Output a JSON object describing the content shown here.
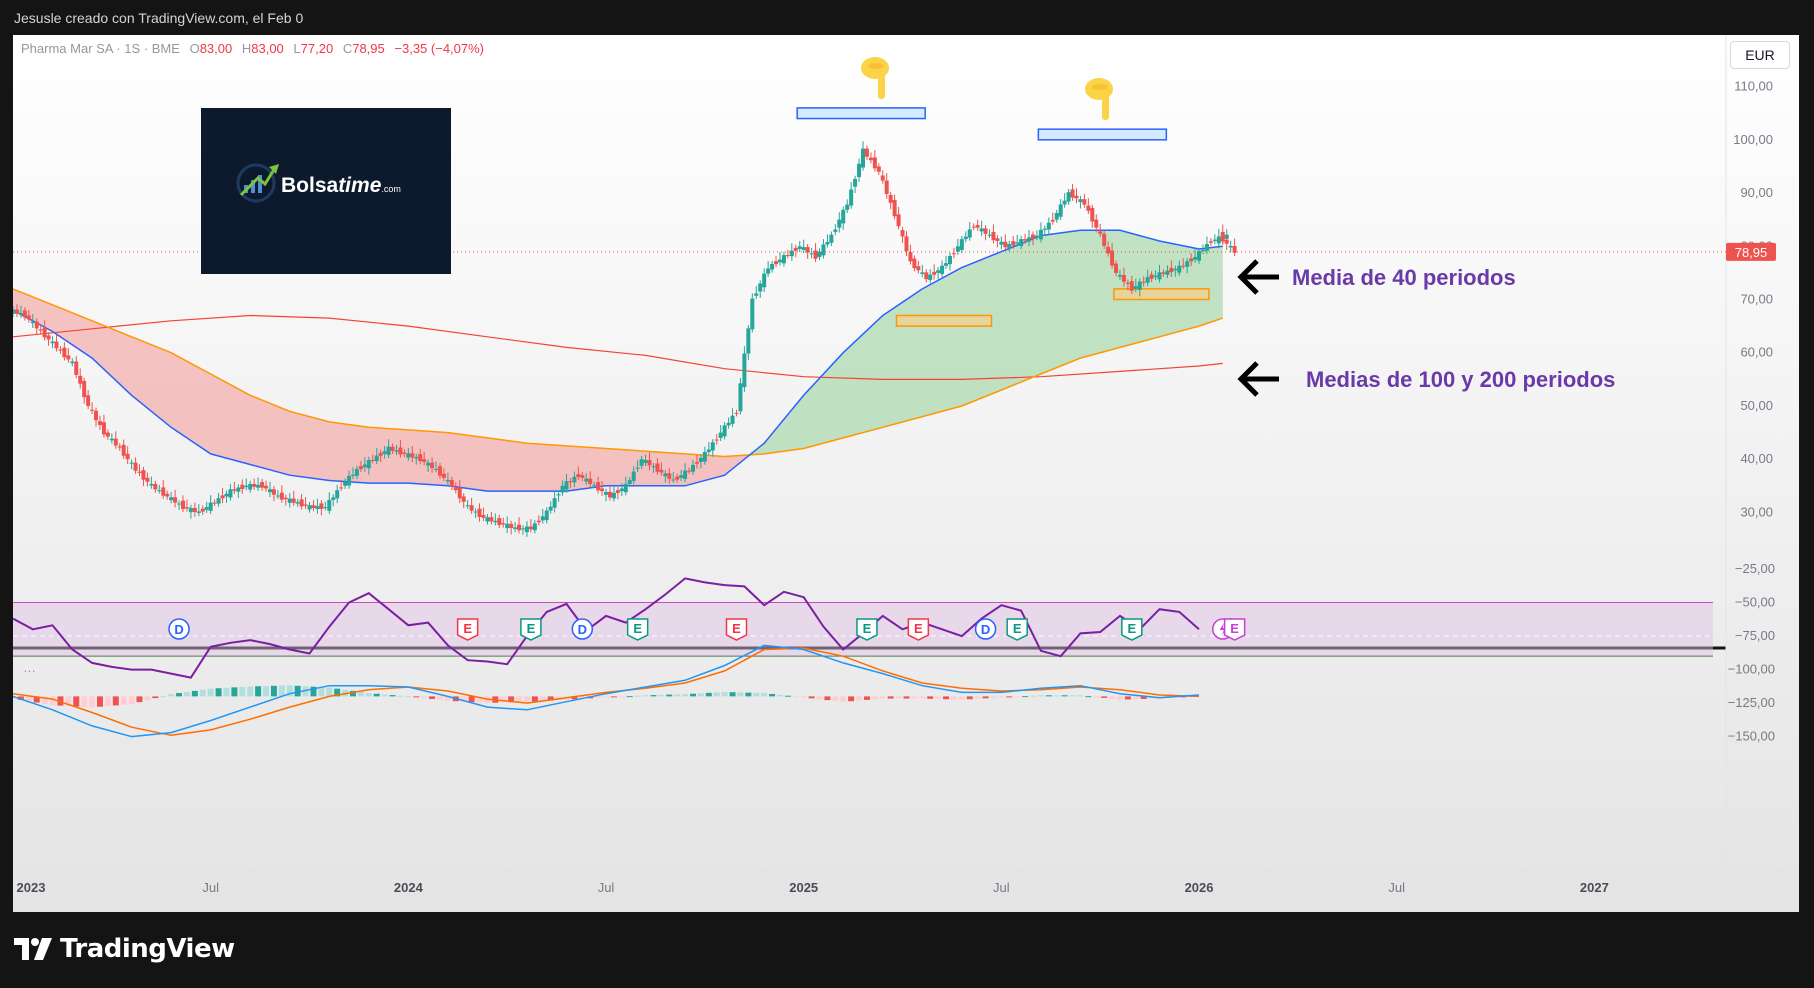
{
  "header": {
    "credit": "Jesusle creado con TradingView.com, el Feb 0"
  },
  "legend": {
    "symbol": "Pharma Mar SA · 1S · BME",
    "o_label": "O",
    "o_value": "83,00",
    "h_label": "H",
    "h_value": "83,00",
    "l_label": "L",
    "l_value": "77,20",
    "c_label": "C",
    "c_value": "78,95",
    "change": "−3,35 (−4,07%)"
  },
  "currency": "EUR",
  "price_tag": "78,95",
  "logo": {
    "brand": "Bolsa",
    "brand_italic": "time",
    "suffix": ".com"
  },
  "annotations": {
    "ma40": "Media de 40 periodos",
    "ma100_200": "Medias de 100 y 200 periodos"
  },
  "pointing_icons": [
    "hand-pointing-down-icon",
    "hand-pointing-down-icon"
  ],
  "events": [
    {
      "type": "D",
      "x": 2023.42
    },
    {
      "type": "E",
      "x": 2024.15
    },
    {
      "type": "E",
      "x": 2024.31
    },
    {
      "type": "D",
      "x": 2024.44
    },
    {
      "type": "E",
      "x": 2024.58
    },
    {
      "type": "E",
      "x": 2024.83
    },
    {
      "type": "E",
      "x": 2025.16
    },
    {
      "type": "E",
      "x": 2025.29
    },
    {
      "type": "D",
      "x": 2025.46
    },
    {
      "type": "E",
      "x": 2025.54
    },
    {
      "type": "E",
      "x": 2025.83
    },
    {
      "type": "F",
      "x": 2026.06
    },
    {
      "type": "E",
      "x": 2026.09
    }
  ],
  "x_axis": [
    "2023",
    "Jul",
    "2024",
    "Jul",
    "2025",
    "Jul",
    "2026",
    "Jul",
    "2027"
  ],
  "colors": {
    "bull": "#26a69a",
    "bear": "#ef5350",
    "ma40": "#2962ff",
    "ma100": "#ff9800",
    "ma200": "#f44336",
    "rsi": "#7b1fa2",
    "macd": "#2196f3",
    "signal": "#ff6d00",
    "annotation": "#6a3aa8"
  },
  "chart_data": [
    {
      "type": "candlestick",
      "title": "",
      "ylim": [
        22,
        115
      ],
      "y_ticks": [
        "110,00",
        "100,00",
        "90,00",
        "80,00",
        "70,00",
        "60,00",
        "50,00",
        "40,00",
        "30,00"
      ],
      "xlim": [
        2023.0,
        2027.3
      ],
      "last_price": 78.95,
      "close": [
        [
          2023.0,
          67
        ],
        [
          2023.04,
          64
        ],
        [
          2023.08,
          61
        ],
        [
          2023.12,
          58
        ],
        [
          2023.16,
          50
        ],
        [
          2023.2,
          45
        ],
        [
          2023.24,
          42
        ],
        [
          2023.28,
          38
        ],
        [
          2023.32,
          35
        ],
        [
          2023.36,
          33
        ],
        [
          2023.4,
          31
        ],
        [
          2023.44,
          30
        ],
        [
          2023.48,
          32
        ],
        [
          2023.52,
          34
        ],
        [
          2023.56,
          35
        ],
        [
          2023.6,
          35
        ],
        [
          2023.64,
          33
        ],
        [
          2023.68,
          32
        ],
        [
          2023.72,
          31
        ],
        [
          2023.76,
          31
        ],
        [
          2023.8,
          35
        ],
        [
          2023.84,
          38
        ],
        [
          2023.88,
          40
        ],
        [
          2023.92,
          42
        ],
        [
          2023.96,
          41
        ],
        [
          2024.0,
          40
        ],
        [
          2024.04,
          38
        ],
        [
          2024.08,
          35
        ],
        [
          2024.12,
          31
        ],
        [
          2024.16,
          29
        ],
        [
          2024.2,
          28
        ],
        [
          2024.24,
          27
        ],
        [
          2024.28,
          27
        ],
        [
          2024.32,
          30
        ],
        [
          2024.36,
          35
        ],
        [
          2024.4,
          37
        ],
        [
          2024.44,
          35
        ],
        [
          2024.48,
          33
        ],
        [
          2024.52,
          35
        ],
        [
          2024.56,
          40
        ],
        [
          2024.6,
          38
        ],
        [
          2024.64,
          36
        ],
        [
          2024.68,
          38
        ],
        [
          2024.72,
          41
        ],
        [
          2024.76,
          45
        ],
        [
          2024.8,
          49
        ],
        [
          2024.84,
          70
        ],
        [
          2024.88,
          76
        ],
        [
          2024.92,
          78
        ],
        [
          2024.96,
          80
        ],
        [
          2025.0,
          78
        ],
        [
          2025.04,
          82
        ],
        [
          2025.08,
          88
        ],
        [
          2025.12,
          98
        ],
        [
          2025.16,
          94
        ],
        [
          2025.2,
          86
        ],
        [
          2025.24,
          77
        ],
        [
          2025.28,
          74
        ],
        [
          2025.32,
          76
        ],
        [
          2025.36,
          80
        ],
        [
          2025.4,
          84
        ],
        [
          2025.44,
          82
        ],
        [
          2025.48,
          80
        ],
        [
          2025.52,
          81
        ],
        [
          2025.56,
          82
        ],
        [
          2025.6,
          85
        ],
        [
          2025.64,
          90
        ],
        [
          2025.68,
          88
        ],
        [
          2025.72,
          82
        ],
        [
          2025.76,
          75
        ],
        [
          2025.8,
          72
        ],
        [
          2025.84,
          74
        ],
        [
          2025.88,
          75
        ],
        [
          2025.92,
          76
        ],
        [
          2025.96,
          78
        ],
        [
          2026.0,
          81
        ],
        [
          2026.04,
          82
        ],
        [
          2026.06,
          78.95
        ]
      ],
      "ma40": [
        [
          2023.0,
          68
        ],
        [
          2023.1,
          64
        ],
        [
          2023.2,
          59
        ],
        [
          2023.3,
          52
        ],
        [
          2023.4,
          46
        ],
        [
          2023.5,
          41
        ],
        [
          2023.6,
          39
        ],
        [
          2023.7,
          37
        ],
        [
          2023.8,
          36
        ],
        [
          2023.9,
          35.5
        ],
        [
          2024.0,
          35.5
        ],
        [
          2024.1,
          35
        ],
        [
          2024.2,
          34
        ],
        [
          2024.3,
          34
        ],
        [
          2024.4,
          34
        ],
        [
          2024.5,
          35
        ],
        [
          2024.6,
          35
        ],
        [
          2024.7,
          35
        ],
        [
          2024.8,
          37
        ],
        [
          2024.9,
          43
        ],
        [
          2025.0,
          52
        ],
        [
          2025.1,
          60
        ],
        [
          2025.2,
          67
        ],
        [
          2025.3,
          72
        ],
        [
          2025.4,
          76
        ],
        [
          2025.5,
          79
        ],
        [
          2025.6,
          82
        ],
        [
          2025.7,
          83
        ],
        [
          2025.8,
          83
        ],
        [
          2025.9,
          81
        ],
        [
          2026.0,
          79.5
        ],
        [
          2026.06,
          80
        ]
      ],
      "ma100": [
        [
          2023.0,
          72
        ],
        [
          2023.1,
          69
        ],
        [
          2023.2,
          66
        ],
        [
          2023.3,
          63
        ],
        [
          2023.4,
          60
        ],
        [
          2023.5,
          56
        ],
        [
          2023.6,
          52
        ],
        [
          2023.7,
          49
        ],
        [
          2023.8,
          47
        ],
        [
          2023.9,
          46
        ],
        [
          2024.0,
          45.5
        ],
        [
          2024.1,
          45
        ],
        [
          2024.2,
          44
        ],
        [
          2024.3,
          43
        ],
        [
          2024.4,
          42.5
        ],
        [
          2024.5,
          42
        ],
        [
          2024.6,
          41.5
        ],
        [
          2024.7,
          41
        ],
        [
          2024.8,
          40.5
        ],
        [
          2024.9,
          41
        ],
        [
          2025.0,
          42
        ],
        [
          2025.1,
          44
        ],
        [
          2025.2,
          46
        ],
        [
          2025.3,
          48
        ],
        [
          2025.4,
          50
        ],
        [
          2025.5,
          53
        ],
        [
          2025.6,
          56
        ],
        [
          2025.7,
          59
        ],
        [
          2025.8,
          61
        ],
        [
          2025.9,
          63
        ],
        [
          2026.0,
          65
        ],
        [
          2026.06,
          66.5
        ]
      ],
      "ma200": [
        [
          2023.0,
          63
        ],
        [
          2023.2,
          64.5
        ],
        [
          2023.4,
          66
        ],
        [
          2023.6,
          67
        ],
        [
          2023.8,
          66.5
        ],
        [
          2024.0,
          65
        ],
        [
          2024.2,
          63
        ],
        [
          2024.4,
          61
        ],
        [
          2024.6,
          59.5
        ],
        [
          2024.8,
          57
        ],
        [
          2025.0,
          55.5
        ],
        [
          2025.2,
          55
        ],
        [
          2025.4,
          55
        ],
        [
          2025.6,
          55.5
        ],
        [
          2025.8,
          56.5
        ],
        [
          2026.0,
          57.5
        ],
        [
          2026.06,
          58
        ]
      ],
      "support_zones": [
        [
          2025.26,
          65,
          67
        ],
        [
          2025.81,
          70,
          72
        ]
      ],
      "resistance_zones": [
        [
          2025.11,
          104,
          106
        ],
        [
          2025.72,
          100,
          102
        ]
      ]
    },
    {
      "type": "line",
      "title": "",
      "ylim": [
        -160,
        -22
      ],
      "y_ticks": [
        "−25,00",
        "−50,00",
        "−75,00",
        "−100,00",
        "−125,00",
        "−150,00"
      ],
      "levels": [
        -50,
        -75,
        -90
      ],
      "rsi": [
        [
          2023.0,
          -62
        ],
        [
          2023.05,
          -70
        ],
        [
          2023.1,
          -67
        ],
        [
          2023.15,
          -85
        ],
        [
          2023.2,
          -95
        ],
        [
          2023.25,
          -98
        ],
        [
          2023.3,
          -100
        ],
        [
          2023.35,
          -100
        ],
        [
          2023.4,
          -103
        ],
        [
          2023.45,
          -106
        ],
        [
          2023.5,
          -83
        ],
        [
          2023.55,
          -80
        ],
        [
          2023.6,
          -78
        ],
        [
          2023.65,
          -81
        ],
        [
          2023.7,
          -85
        ],
        [
          2023.75,
          -88
        ],
        [
          2023.8,
          -68
        ],
        [
          2023.85,
          -50
        ],
        [
          2023.9,
          -43
        ],
        [
          2023.95,
          -55
        ],
        [
          2024.0,
          -67
        ],
        [
          2024.05,
          -65
        ],
        [
          2024.1,
          -82
        ],
        [
          2024.15,
          -93
        ],
        [
          2024.2,
          -94
        ],
        [
          2024.25,
          -96
        ],
        [
          2024.3,
          -75
        ],
        [
          2024.35,
          -57
        ],
        [
          2024.4,
          -51
        ],
        [
          2024.45,
          -71
        ],
        [
          2024.5,
          -60
        ],
        [
          2024.55,
          -65
        ],
        [
          2024.6,
          -55
        ],
        [
          2024.65,
          -44
        ],
        [
          2024.7,
          -32
        ],
        [
          2024.75,
          -35
        ],
        [
          2024.8,
          -37
        ],
        [
          2024.85,
          -38
        ],
        [
          2024.9,
          -52
        ],
        [
          2024.95,
          -42
        ],
        [
          2025.0,
          -46
        ],
        [
          2025.05,
          -68
        ],
        [
          2025.1,
          -85
        ],
        [
          2025.15,
          -73
        ],
        [
          2025.2,
          -60
        ],
        [
          2025.25,
          -70
        ],
        [
          2025.3,
          -65
        ],
        [
          2025.35,
          -70
        ],
        [
          2025.4,
          -75
        ],
        [
          2025.45,
          -62
        ],
        [
          2025.5,
          -52
        ],
        [
          2025.55,
          -56
        ],
        [
          2025.6,
          -86
        ],
        [
          2025.65,
          -90
        ],
        [
          2025.7,
          -73
        ],
        [
          2025.75,
          -72
        ],
        [
          2025.8,
          -60
        ],
        [
          2025.85,
          -70
        ],
        [
          2025.9,
          -55
        ],
        [
          2025.95,
          -57
        ],
        [
          2026.0,
          -70
        ]
      ],
      "macd": [
        [
          2023.0,
          -120
        ],
        [
          2023.1,
          -130
        ],
        [
          2023.2,
          -142
        ],
        [
          2023.3,
          -150
        ],
        [
          2023.4,
          -147
        ],
        [
          2023.5,
          -138
        ],
        [
          2023.6,
          -128
        ],
        [
          2023.7,
          -118
        ],
        [
          2023.8,
          -112
        ],
        [
          2023.9,
          -112
        ],
        [
          2024.0,
          -113
        ],
        [
          2024.1,
          -120
        ],
        [
          2024.2,
          -128
        ],
        [
          2024.3,
          -130
        ],
        [
          2024.4,
          -124
        ],
        [
          2024.5,
          -118
        ],
        [
          2024.6,
          -113
        ],
        [
          2024.7,
          -108
        ],
        [
          2024.8,
          -97
        ],
        [
          2024.9,
          -82
        ],
        [
          2025.0,
          -85
        ],
        [
          2025.1,
          -95
        ],
        [
          2025.2,
          -103
        ],
        [
          2025.3,
          -112
        ],
        [
          2025.4,
          -117
        ],
        [
          2025.5,
          -117
        ],
        [
          2025.6,
          -114
        ],
        [
          2025.7,
          -112
        ],
        [
          2025.8,
          -118
        ],
        [
          2025.9,
          -121
        ],
        [
          2026.0,
          -119
        ]
      ],
      "signal": [
        [
          2023.0,
          -118
        ],
        [
          2023.1,
          -122
        ],
        [
          2023.2,
          -132
        ],
        [
          2023.3,
          -143
        ],
        [
          2023.4,
          -149
        ],
        [
          2023.5,
          -145
        ],
        [
          2023.6,
          -137
        ],
        [
          2023.7,
          -128
        ],
        [
          2023.8,
          -120
        ],
        [
          2023.9,
          -115
        ],
        [
          2024.0,
          -113
        ],
        [
          2024.1,
          -116
        ],
        [
          2024.2,
          -122
        ],
        [
          2024.3,
          -125
        ],
        [
          2024.4,
          -121
        ],
        [
          2024.5,
          -117
        ],
        [
          2024.6,
          -114
        ],
        [
          2024.7,
          -110
        ],
        [
          2024.8,
          -101
        ],
        [
          2024.9,
          -85
        ],
        [
          2025.0,
          -84
        ],
        [
          2025.1,
          -90
        ],
        [
          2025.2,
          -101
        ],
        [
          2025.3,
          -110
        ],
        [
          2025.4,
          -114
        ],
        [
          2025.5,
          -116
        ],
        [
          2025.6,
          -115
        ],
        [
          2025.7,
          -113
        ],
        [
          2025.8,
          -115
        ],
        [
          2025.9,
          -119
        ],
        [
          2026.0,
          -120
        ]
      ]
    }
  ]
}
